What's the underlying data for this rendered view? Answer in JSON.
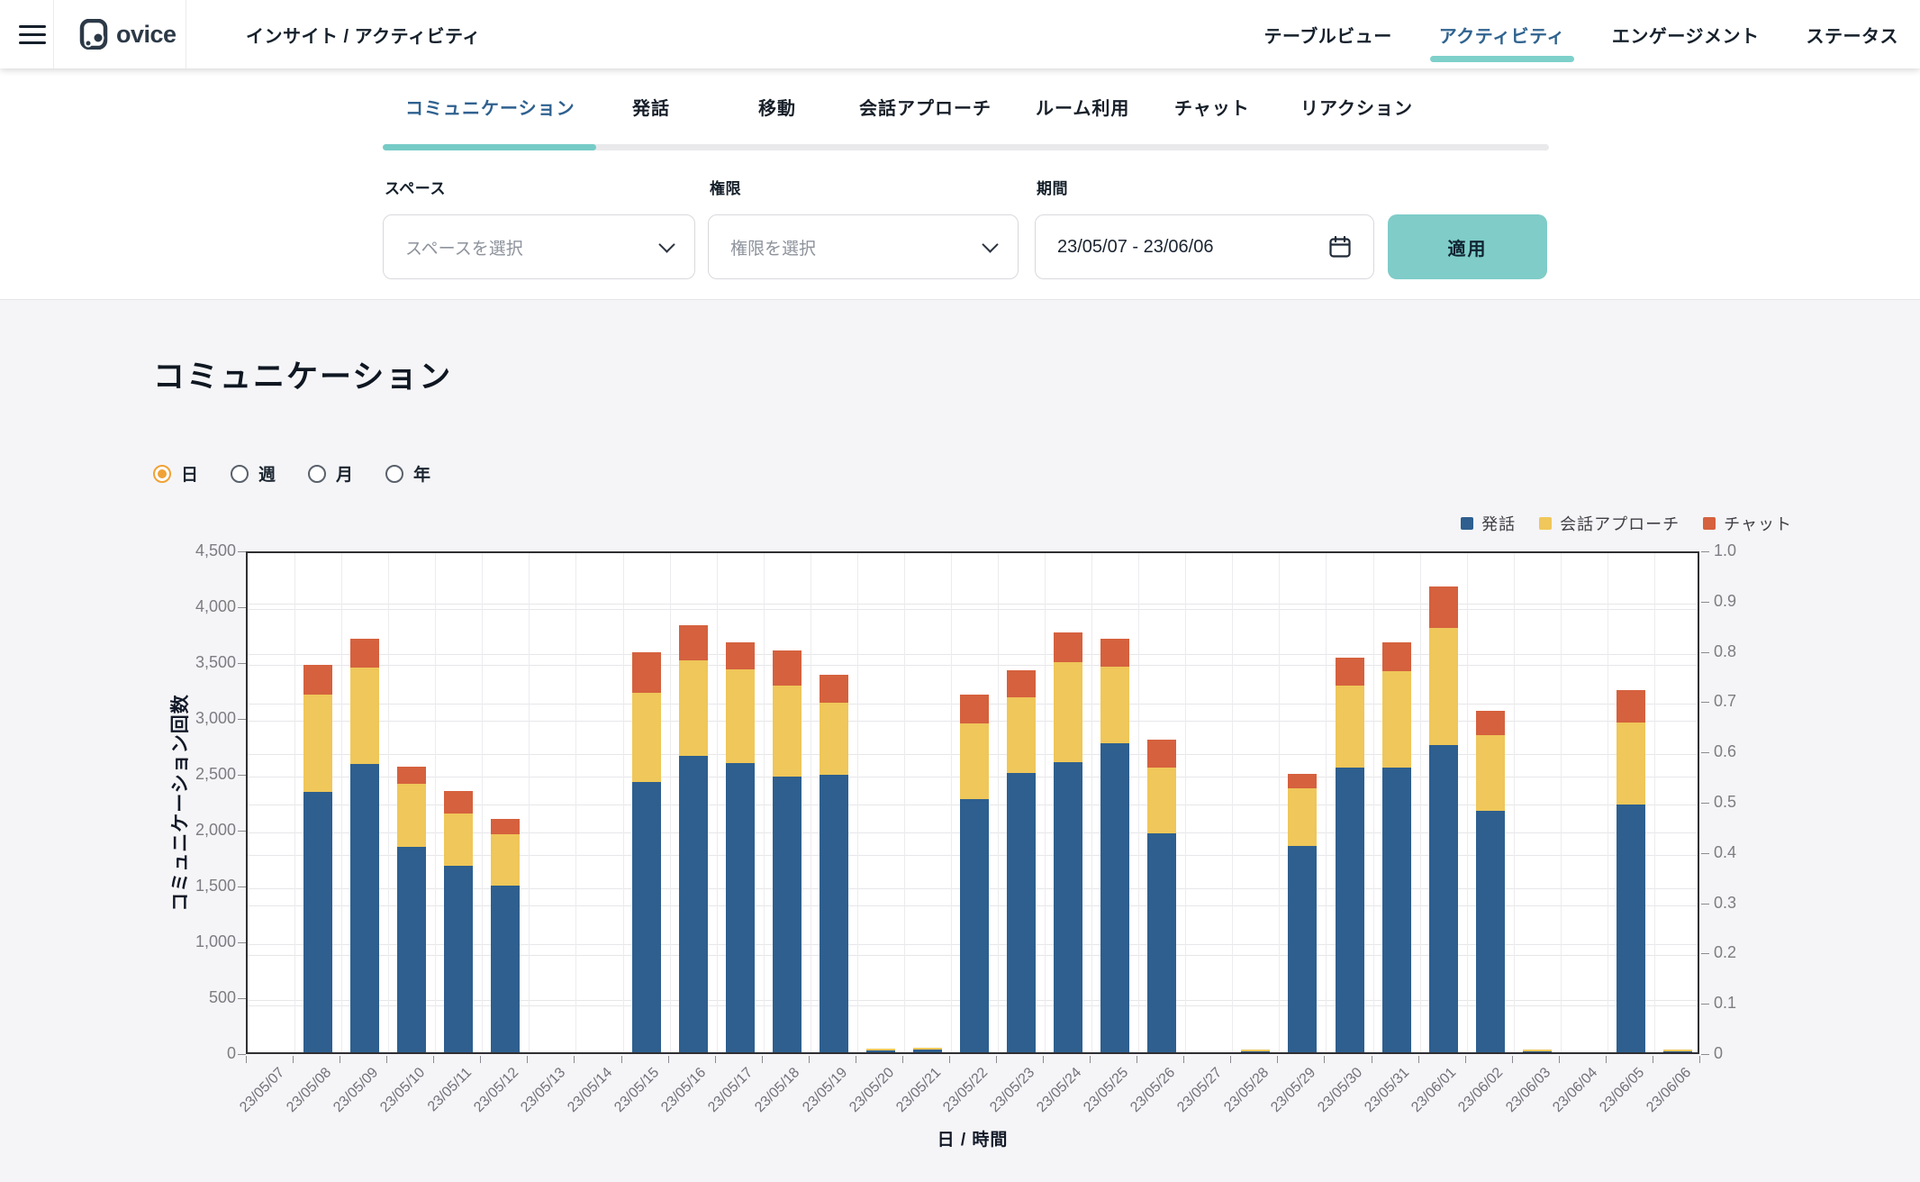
{
  "header": {
    "brand": "ovice",
    "breadcrumb": "インサイト / アクティビティ",
    "nav": [
      {
        "label": "テーブルビュー",
        "active": false
      },
      {
        "label": "アクティビティ",
        "active": true
      },
      {
        "label": "エンゲージメント",
        "active": false
      },
      {
        "label": "ステータス",
        "active": false
      }
    ]
  },
  "subnav": {
    "tabs": [
      {
        "label": "コミュニケーション",
        "active": true
      },
      {
        "label": "発話",
        "active": false
      },
      {
        "label": "移動",
        "active": false
      },
      {
        "label": "会話アプローチ",
        "active": false
      },
      {
        "label": "ルーム利用",
        "active": false
      },
      {
        "label": "チャット",
        "active": false
      },
      {
        "label": "リアクション",
        "active": false
      }
    ]
  },
  "filters": {
    "space_label": "スペース",
    "space_placeholder": "スペースを選択",
    "role_label": "権限",
    "role_placeholder": "権限を選択",
    "period_label": "期間",
    "period_value": "23/05/07 - 23/06/06",
    "apply_label": "適用"
  },
  "section": {
    "title": "コミュニケーション"
  },
  "granularity": {
    "options": [
      {
        "label": "日",
        "selected": true
      },
      {
        "label": "週",
        "selected": false
      },
      {
        "label": "月",
        "selected": false
      },
      {
        "label": "年",
        "selected": false
      }
    ]
  },
  "colors": {
    "accent_teal": "#7fccc8",
    "active_tab_blue": "#30638f",
    "radio_orange": "#f0a236",
    "series_blue": "#2e5f8e",
    "series_yellow": "#efc75a",
    "series_red": "#d5613e",
    "page_bg": "#f5f5f7"
  },
  "chart_data": {
    "type": "bar",
    "stacked": true,
    "title": "コミュニケーション",
    "xlabel": "日 / 時間",
    "ylabel": "コミュニケーション回数",
    "legend_position": "top-right",
    "grid": true,
    "ylim_left": [
      0,
      4500
    ],
    "yticks_left": [
      0,
      500,
      1000,
      1500,
      2000,
      2500,
      3000,
      3500,
      4000,
      4500
    ],
    "ylim_right": [
      0,
      1.0
    ],
    "yticks_right": [
      0,
      0.1,
      0.2,
      0.3,
      0.4,
      0.5,
      0.6,
      0.7,
      0.8,
      0.9,
      1.0
    ],
    "categories": [
      "23/05/07",
      "23/05/08",
      "23/05/09",
      "23/05/10",
      "23/05/11",
      "23/05/12",
      "23/05/13",
      "23/05/14",
      "23/05/15",
      "23/05/16",
      "23/05/17",
      "23/05/18",
      "23/05/19",
      "23/05/20",
      "23/05/21",
      "23/05/22",
      "23/05/23",
      "23/05/24",
      "23/05/25",
      "23/05/26",
      "23/05/27",
      "23/05/28",
      "23/05/29",
      "23/05/30",
      "23/05/31",
      "23/06/01",
      "23/06/02",
      "23/06/03",
      "23/06/04",
      "23/06/05",
      "23/06/06"
    ],
    "series": [
      {
        "name": "発話",
        "color": "#2e5f8e",
        "values": [
          0,
          2330,
          2580,
          1840,
          1670,
          1490,
          0,
          0,
          2420,
          2650,
          2590,
          2470,
          2480,
          20,
          25,
          2270,
          2500,
          2600,
          2770,
          1960,
          0,
          10,
          1850,
          2550,
          2550,
          2750,
          2160,
          10,
          0,
          2220,
          5
        ]
      },
      {
        "name": "会話アプローチ",
        "color": "#efc75a",
        "values": [
          0,
          870,
          860,
          560,
          470,
          460,
          0,
          0,
          800,
          860,
          840,
          810,
          650,
          5,
          5,
          670,
          680,
          890,
          680,
          590,
          0,
          5,
          510,
          730,
          860,
          1050,
          680,
          5,
          0,
          730,
          10
        ]
      },
      {
        "name": "チャット",
        "color": "#d5613e",
        "values": [
          0,
          270,
          260,
          160,
          200,
          140,
          0,
          0,
          360,
          310,
          240,
          320,
          250,
          0,
          0,
          260,
          240,
          270,
          250,
          250,
          0,
          0,
          130,
          250,
          260,
          370,
          220,
          0,
          0,
          290,
          0
        ]
      }
    ]
  }
}
